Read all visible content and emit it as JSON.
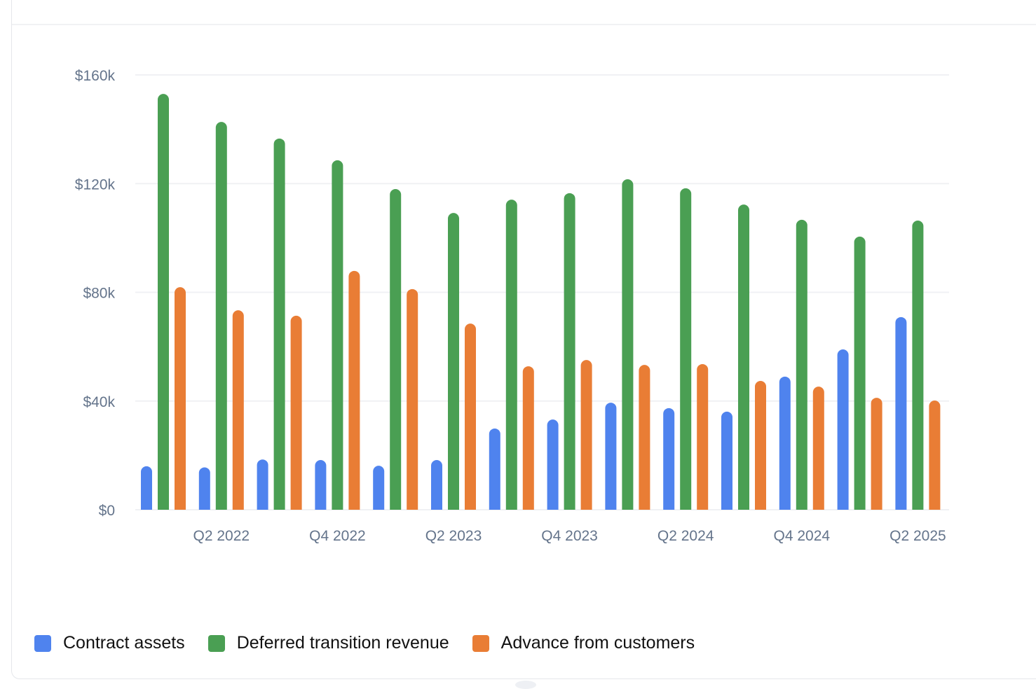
{
  "colors": {
    "contract_assets": "#4f83ee",
    "deferred_transition_revenue": "#4a9f53",
    "advance_from_customers": "#e97d35",
    "grid": "#f0f1f4",
    "axis_text": "#64748b"
  },
  "legend": {
    "items": [
      {
        "label": "Contract assets",
        "color": "#4f83ee"
      },
      {
        "label": "Deferred transition revenue",
        "color": "#4a9f53"
      },
      {
        "label": "Advance from customers",
        "color": "#e97d35"
      }
    ]
  },
  "chart_data": {
    "type": "bar",
    "title": "",
    "xlabel": "",
    "ylabel": "",
    "ylim": [
      0,
      160000
    ],
    "grid": true,
    "legend_position": "bottom-left",
    "y_ticks": [
      {
        "value": 0,
        "label": "$0"
      },
      {
        "value": 40000,
        "label": "$40k"
      },
      {
        "value": 80000,
        "label": "$80k"
      },
      {
        "value": 120000,
        "label": "$120k"
      },
      {
        "value": 160000,
        "label": "$160k"
      }
    ],
    "categories": [
      "Q1 2022",
      "Q2 2022",
      "Q3 2022",
      "Q4 2022",
      "Q1 2023",
      "Q2 2023",
      "Q3 2023",
      "Q4 2023",
      "Q1 2024",
      "Q2 2024",
      "Q3 2024",
      "Q4 2024",
      "Q1 2025",
      "Q2 2025"
    ],
    "x_tick_labels": [
      {
        "index": 1,
        "label": "Q2 2022"
      },
      {
        "index": 3,
        "label": "Q4 2022"
      },
      {
        "index": 5,
        "label": "Q2 2023"
      },
      {
        "index": 7,
        "label": "Q4 2023"
      },
      {
        "index": 9,
        "label": "Q2 2024"
      },
      {
        "index": 11,
        "label": "Q4 2024"
      },
      {
        "index": 13,
        "label": "Q2 2025"
      }
    ],
    "series": [
      {
        "name": "Contract assets",
        "color": "#4f83ee",
        "values": [
          16000,
          15600,
          18500,
          18300,
          16200,
          18300,
          29900,
          33200,
          39400,
          37400,
          36100,
          49000,
          59000,
          70900
        ]
      },
      {
        "name": "Deferred transition revenue",
        "color": "#4a9f53",
        "values": [
          153000,
          142700,
          136600,
          128600,
          118000,
          109200,
          114100,
          116500,
          121600,
          118300,
          112300,
          106700,
          100500,
          106400
        ]
      },
      {
        "name": "Advance from customers",
        "color": "#e97d35",
        "values": [
          81900,
          73400,
          71400,
          87900,
          81200,
          68500,
          52800,
          55100,
          53300,
          53600,
          47400,
          45300,
          41200,
          40200
        ]
      }
    ]
  }
}
